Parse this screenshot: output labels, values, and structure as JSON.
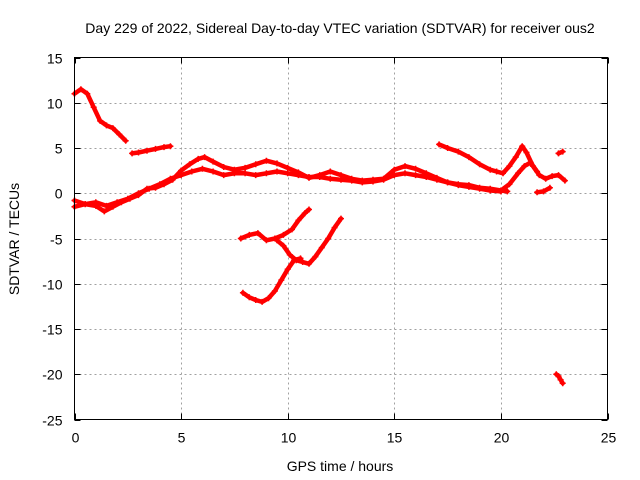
{
  "chart_data": {
    "type": "scatter",
    "title": "Day 229 of 2022, Sidereal Day-to-day VTEC variation (SDTVAR) for receiver ous2",
    "xlabel": "GPS time / hours",
    "ylabel": "SDTVAR / TECUs",
    "xlim": [
      0,
      25
    ],
    "ylim": [
      -25,
      15
    ],
    "xticks": [
      0,
      5,
      10,
      15,
      20,
      25
    ],
    "yticks": [
      -25,
      -20,
      -15,
      -10,
      -5,
      0,
      5,
      10,
      15
    ],
    "grid": true,
    "marker_color": "#ff0000",
    "series": [
      {
        "name": "arc-1",
        "x": [
          0.0,
          0.3,
          0.6,
          0.9,
          1.2,
          1.5,
          1.8,
          2.1,
          2.4
        ],
        "y": [
          11.0,
          11.5,
          11.0,
          9.5,
          8.0,
          7.5,
          7.2,
          6.5,
          5.8
        ]
      },
      {
        "name": "arc-2",
        "x": [
          2.7,
          3.0,
          3.4,
          3.8,
          4.2,
          4.5
        ],
        "y": [
          4.4,
          4.5,
          4.7,
          4.9,
          5.1,
          5.2
        ]
      },
      {
        "name": "arc-3",
        "x": [
          0.0,
          0.5,
          1.0,
          1.4,
          1.8,
          2.2,
          2.6,
          3.0,
          3.4,
          3.8,
          4.2,
          4.6,
          5.0,
          5.4,
          5.8,
          6.1,
          6.5,
          7.0,
          7.5,
          8.0,
          8.5,
          9.0,
          9.5,
          10.0,
          10.5,
          11.0,
          11.5,
          12.0,
          12.5,
          13.0,
          13.5,
          14.0,
          14.5,
          15.0,
          15.5,
          16.0,
          16.5,
          17.0,
          17.5,
          18.0,
          18.5,
          19.0,
          19.5,
          20.0
        ],
        "y": [
          -0.8,
          -1.2,
          -1.4,
          -2.0,
          -1.5,
          -1.0,
          -0.6,
          -0.2,
          0.5,
          0.6,
          1.0,
          1.5,
          2.5,
          3.2,
          3.8,
          4.0,
          3.5,
          2.9,
          2.6,
          2.8,
          3.2,
          3.6,
          3.3,
          2.8,
          2.3,
          1.7,
          2.0,
          2.4,
          2.0,
          1.6,
          1.4,
          1.5,
          1.6,
          2.6,
          3.0,
          2.7,
          2.2,
          1.7,
          1.2,
          0.9,
          0.7,
          0.5,
          0.3,
          0.2
        ]
      },
      {
        "name": "arc-4",
        "x": [
          0.0,
          0.5,
          1.0,
          1.5,
          2.0,
          2.5,
          3.0,
          3.5,
          4.0,
          4.5,
          5.0,
          5.5,
          6.0,
          6.5,
          7.0,
          7.5,
          8.0,
          8.5,
          9.0,
          9.5,
          10.0,
          10.5,
          11.0,
          11.5,
          12.0,
          12.5,
          13.0,
          13.5,
          14.0,
          14.5,
          15.0,
          15.5,
          16.0,
          16.5,
          17.0,
          17.5,
          18.0,
          18.5,
          19.0,
          19.5,
          20.0,
          20.3
        ],
        "y": [
          -1.5,
          -1.2,
          -1.0,
          -1.4,
          -1.0,
          -0.6,
          0.0,
          0.5,
          1.0,
          1.6,
          2.0,
          2.4,
          2.7,
          2.4,
          2.0,
          2.2,
          2.2,
          2.0,
          2.2,
          2.4,
          2.2,
          2.0,
          1.8,
          1.8,
          1.6,
          1.5,
          1.4,
          1.2,
          1.3,
          1.5,
          2.0,
          2.2,
          2.0,
          1.8,
          1.5,
          1.2,
          1.0,
          0.9,
          0.6,
          0.5,
          0.3,
          0.2
        ]
      },
      {
        "name": "arc-5",
        "x": [
          7.8,
          8.2,
          8.6,
          9.0,
          9.4,
          9.8,
          10.2,
          10.5,
          10.8,
          11.0
        ],
        "y": [
          -5.0,
          -4.6,
          -4.4,
          -5.2,
          -5.0,
          -4.6,
          -4.0,
          -3.0,
          -2.2,
          -1.8
        ]
      },
      {
        "name": "arc-6",
        "x": [
          9.5,
          9.8,
          10.1,
          10.4,
          10.7,
          11.0,
          11.3,
          11.6,
          11.9,
          12.2,
          12.5
        ],
        "y": [
          -5.2,
          -5.8,
          -6.8,
          -7.4,
          -7.6,
          -7.8,
          -7.0,
          -6.0,
          -5.0,
          -3.8,
          -2.8
        ]
      },
      {
        "name": "arc-7",
        "x": [
          7.9,
          8.2,
          8.5,
          8.8,
          9.1,
          9.4,
          9.7,
          10.0,
          10.3,
          10.6
        ],
        "y": [
          -11.0,
          -11.5,
          -11.8,
          -12.0,
          -11.6,
          -10.8,
          -9.6,
          -8.4,
          -7.4,
          -7.2
        ]
      },
      {
        "name": "arc-8",
        "x": [
          17.1,
          17.5,
          18.0,
          18.5,
          19.0,
          19.5,
          19.8,
          20.1,
          20.4,
          20.7,
          21.0,
          21.2,
          21.5,
          21.8,
          22.1,
          22.4,
          22.7,
          23.0
        ],
        "y": [
          5.4,
          5.0,
          4.6,
          4.0,
          3.2,
          2.6,
          2.4,
          2.2,
          3.0,
          4.0,
          5.2,
          4.5,
          3.0,
          2.0,
          1.6,
          1.9,
          2.0,
          1.4
        ]
      },
      {
        "name": "arc-9",
        "x": [
          20.0,
          20.4,
          20.8,
          21.1,
          21.4,
          21.7
        ],
        "y": [
          0.3,
          1.0,
          2.2,
          3.0,
          3.4,
          2.4
        ]
      },
      {
        "name": "arc-10",
        "x": [
          21.7,
          22.0,
          22.3
        ],
        "y": [
          0.1,
          0.2,
          0.6
        ]
      },
      {
        "name": "arc-11",
        "x": [
          22.7,
          22.9
        ],
        "y": [
          4.4,
          4.6
        ]
      },
      {
        "name": "arc-12",
        "x": [
          22.6,
          22.7,
          22.8,
          22.9
        ],
        "y": [
          -20.0,
          -20.2,
          -20.6,
          -21.0
        ]
      }
    ]
  }
}
